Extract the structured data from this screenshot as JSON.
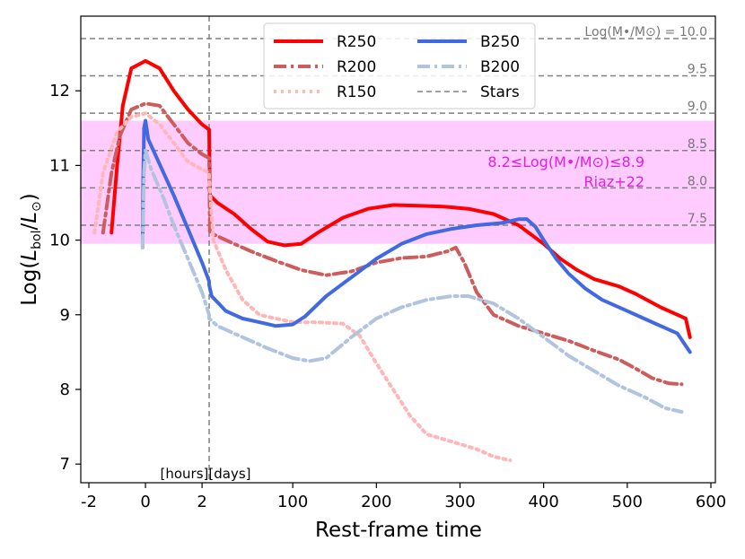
{
  "chart_data": {
    "type": "line",
    "title": "",
    "xlabel": "Rest-frame time",
    "ylabel": "Log(L_bol/L_⊙)",
    "ylim": [
      6.75,
      13.0
    ],
    "xaxis": {
      "note": "piecewise axis: hours before divider, days after",
      "hours_range": [
        -2,
        2.25
      ],
      "days_range": [
        0,
        600
      ],
      "divider_label": "[hours][days]",
      "ticks": [
        "-2",
        "0",
        "2",
        "100",
        "200",
        "300",
        "400",
        "500",
        "600"
      ]
    },
    "yticks": [
      "7",
      "8",
      "9",
      "10",
      "11",
      "12"
    ],
    "band": {
      "ymin": 9.95,
      "ymax": 11.6,
      "color": "#ff00ff",
      "text1": "8.2≤Log(M•/M⊙)≤8.9",
      "text2": "Riaz+22"
    },
    "star_lines": [
      {
        "y": 12.7,
        "label": "Log(M•/M⊙) = 10.0"
      },
      {
        "y": 12.2,
        "label": "9.5"
      },
      {
        "y": 11.7,
        "label": "9.0"
      },
      {
        "y": 11.2,
        "label": "8.5"
      },
      {
        "y": 10.7,
        "label": "8.0"
      },
      {
        "y": 10.2,
        "label": "7.5"
      }
    ],
    "legend": {
      "position": "top-center",
      "entries": [
        "R250",
        "B250",
        "R200",
        "B200",
        "R150",
        "Stars"
      ]
    },
    "series": [
      {
        "name": "R250",
        "color": "#ff0000",
        "style": "solid",
        "width": 4,
        "hours": [
          [
            -1.2,
            10.1
          ],
          [
            -1.0,
            11.0
          ],
          [
            -0.8,
            11.8
          ],
          [
            -0.5,
            12.3
          ],
          [
            0,
            12.4
          ],
          [
            0.5,
            12.3
          ],
          [
            1,
            12.0
          ],
          [
            1.5,
            11.75
          ],
          [
            2.0,
            11.55
          ],
          [
            2.25,
            11.48
          ]
        ],
        "days": [
          [
            0,
            11.45
          ],
          [
            1,
            10.6
          ],
          [
            10,
            10.5
          ],
          [
            30,
            10.35
          ],
          [
            50,
            10.15
          ],
          [
            70,
            9.98
          ],
          [
            90,
            9.93
          ],
          [
            110,
            9.95
          ],
          [
            130,
            10.1
          ],
          [
            160,
            10.3
          ],
          [
            190,
            10.42
          ],
          [
            220,
            10.47
          ],
          [
            250,
            10.46
          ],
          [
            280,
            10.45
          ],
          [
            310,
            10.42
          ],
          [
            340,
            10.35
          ],
          [
            370,
            10.2
          ],
          [
            400,
            9.95
          ],
          [
            420,
            9.75
          ],
          [
            440,
            9.6
          ],
          [
            460,
            9.48
          ],
          [
            490,
            9.38
          ],
          [
            510,
            9.28
          ],
          [
            540,
            9.1
          ],
          [
            560,
            9.0
          ],
          [
            570,
            8.95
          ],
          [
            575,
            8.7
          ]
        ]
      },
      {
        "name": "R200",
        "color": "#cd5c5c",
        "style": "dashdot",
        "width": 4,
        "hours": [
          [
            -1.5,
            10.1
          ],
          [
            -1.2,
            10.9
          ],
          [
            -0.9,
            11.4
          ],
          [
            -0.5,
            11.75
          ],
          [
            0,
            11.83
          ],
          [
            0.5,
            11.8
          ],
          [
            1,
            11.55
          ],
          [
            1.5,
            11.3
          ],
          [
            2.0,
            11.15
          ],
          [
            2.25,
            11.1
          ]
        ],
        "days": [
          [
            0,
            11.05
          ],
          [
            1,
            10.1
          ],
          [
            20,
            10.0
          ],
          [
            50,
            9.85
          ],
          [
            80,
            9.72
          ],
          [
            110,
            9.6
          ],
          [
            140,
            9.53
          ],
          [
            170,
            9.58
          ],
          [
            200,
            9.7
          ],
          [
            230,
            9.76
          ],
          [
            260,
            9.78
          ],
          [
            285,
            9.85
          ],
          [
            295,
            9.9
          ],
          [
            305,
            9.7
          ],
          [
            320,
            9.3
          ],
          [
            340,
            9.0
          ],
          [
            370,
            8.85
          ],
          [
            400,
            8.75
          ],
          [
            430,
            8.65
          ],
          [
            460,
            8.52
          ],
          [
            490,
            8.4
          ],
          [
            510,
            8.28
          ],
          [
            530,
            8.15
          ],
          [
            550,
            8.08
          ],
          [
            565,
            8.07
          ]
        ]
      },
      {
        "name": "R150",
        "color": "#ffb6b6",
        "style": "dotted",
        "width": 4,
        "hours": [
          [
            -1.8,
            10.1
          ],
          [
            -1.5,
            10.9
          ],
          [
            -1.0,
            11.45
          ],
          [
            -0.5,
            11.65
          ],
          [
            0,
            11.7
          ],
          [
            0.5,
            11.55
          ],
          [
            1,
            11.3
          ],
          [
            1.5,
            11.05
          ],
          [
            2.0,
            10.95
          ],
          [
            2.25,
            10.9
          ]
        ],
        "days": [
          [
            0,
            10.85
          ],
          [
            5,
            10.0
          ],
          [
            20,
            9.6
          ],
          [
            40,
            9.2
          ],
          [
            60,
            9.0
          ],
          [
            80,
            8.95
          ],
          [
            100,
            8.9
          ],
          [
            130,
            8.9
          ],
          [
            160,
            8.88
          ],
          [
            180,
            8.72
          ],
          [
            200,
            8.35
          ],
          [
            220,
            8.0
          ],
          [
            240,
            7.65
          ],
          [
            260,
            7.4
          ],
          [
            290,
            7.3
          ],
          [
            320,
            7.2
          ],
          [
            340,
            7.1
          ],
          [
            360,
            7.05
          ]
        ]
      },
      {
        "name": "B250",
        "color": "#4169e1",
        "style": "solid",
        "width": 4,
        "hours": [
          [
            -0.1,
            9.9
          ],
          [
            -0.08,
            10.8
          ],
          [
            -0.05,
            11.5
          ],
          [
            0,
            11.6
          ],
          [
            0.1,
            11.35
          ],
          [
            0.4,
            11.1
          ],
          [
            1,
            10.6
          ],
          [
            1.5,
            10.15
          ],
          [
            2.0,
            9.7
          ],
          [
            2.25,
            9.45
          ]
        ],
        "days": [
          [
            0,
            9.4
          ],
          [
            3,
            9.25
          ],
          [
            20,
            9.05
          ],
          [
            40,
            8.95
          ],
          [
            60,
            8.9
          ],
          [
            80,
            8.85
          ],
          [
            100,
            8.87
          ],
          [
            115,
            8.98
          ],
          [
            140,
            9.25
          ],
          [
            170,
            9.5
          ],
          [
            200,
            9.75
          ],
          [
            230,
            9.95
          ],
          [
            260,
            10.08
          ],
          [
            290,
            10.15
          ],
          [
            320,
            10.2
          ],
          [
            350,
            10.23
          ],
          [
            370,
            10.28
          ],
          [
            380,
            10.28
          ],
          [
            390,
            10.18
          ],
          [
            400,
            10.0
          ],
          [
            415,
            9.75
          ],
          [
            430,
            9.55
          ],
          [
            450,
            9.35
          ],
          [
            470,
            9.2
          ],
          [
            500,
            9.05
          ],
          [
            520,
            8.95
          ],
          [
            540,
            8.85
          ],
          [
            560,
            8.75
          ],
          [
            575,
            8.5
          ]
        ]
      },
      {
        "name": "B200",
        "color": "#b0c4de",
        "style": "dashdot",
        "width": 4,
        "hours": [
          [
            -0.1,
            9.9
          ],
          [
            -0.05,
            10.9
          ],
          [
            0,
            11.2
          ],
          [
            0.2,
            10.95
          ],
          [
            0.6,
            10.6
          ],
          [
            1,
            10.2
          ],
          [
            1.5,
            9.75
          ],
          [
            2.0,
            9.3
          ],
          [
            2.25,
            9.0
          ]
        ],
        "days": [
          [
            0,
            8.95
          ],
          [
            10,
            8.85
          ],
          [
            40,
            8.7
          ],
          [
            70,
            8.55
          ],
          [
            100,
            8.42
          ],
          [
            120,
            8.38
          ],
          [
            140,
            8.42
          ],
          [
            170,
            8.7
          ],
          [
            200,
            8.95
          ],
          [
            230,
            9.1
          ],
          [
            260,
            9.2
          ],
          [
            290,
            9.25
          ],
          [
            310,
            9.25
          ],
          [
            340,
            9.15
          ],
          [
            370,
            8.95
          ],
          [
            400,
            8.7
          ],
          [
            430,
            8.45
          ],
          [
            460,
            8.25
          ],
          [
            490,
            8.05
          ],
          [
            520,
            7.9
          ],
          [
            545,
            7.75
          ],
          [
            565,
            7.7
          ]
        ]
      },
      {
        "name": "Stars",
        "color": "#808080",
        "style": "dashed",
        "width": 1.5,
        "hours": [],
        "days": []
      }
    ]
  }
}
